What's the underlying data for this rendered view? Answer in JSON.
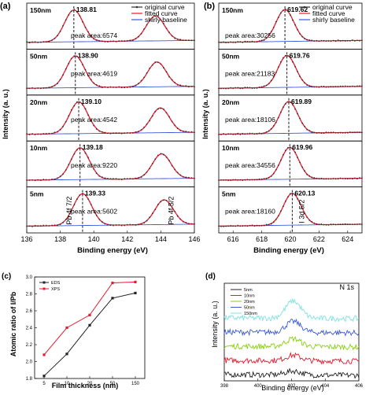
{
  "chart_data": [
    {
      "id": "a",
      "type": "line",
      "panel_label": "(a)",
      "xlabel": "Binding energy (eV)",
      "ylabel": "Intensity (a. u.)",
      "xlim": [
        136,
        146
      ],
      "xticks": [
        "136",
        "138",
        "140",
        "142",
        "144",
        "146"
      ],
      "legend": [
        "original curve",
        "fitted curve",
        "shirly baseline"
      ],
      "legend_colors": [
        "#333333",
        "#e8192c",
        "#3b5bdb"
      ],
      "peak1_width": 0.55,
      "peak2_center_offset": 4.87,
      "peak2_ratio": 0.78,
      "rows": [
        {
          "sample": "150nm",
          "peak": "138.81",
          "area": "peak area:6574",
          "peak_value": 138.81
        },
        {
          "sample": "50nm",
          "peak": "138.90",
          "area": "peak area:4619",
          "peak_value": 138.9
        },
        {
          "sample": "20nm",
          "peak": "139.10",
          "area": "peak area:4542",
          "peak_value": 139.1
        },
        {
          "sample": "10nm",
          "peak": "139.18",
          "area": "peak area:9220",
          "peak_value": 139.18
        },
        {
          "sample": "5nm",
          "peak": "139.33",
          "area": "peak area:5602",
          "peak_value": 139.33
        }
      ],
      "annotations": [
        "Pb 4f 7/2",
        "Pb 4f 5/2"
      ]
    },
    {
      "id": "b",
      "type": "line",
      "panel_label": "(b)",
      "xlabel": "Binding energy (eV)",
      "ylabel": "Intensity (a. u.)",
      "xlim": [
        615,
        625
      ],
      "xticks": [
        "616",
        "618",
        "620",
        "622",
        "624"
      ],
      "legend": [
        "original curve",
        "fitted curve",
        "shirly baseline"
      ],
      "legend_colors": [
        "#333333",
        "#e8192c",
        "#3b5bdb"
      ],
      "peak1_width": 0.62,
      "rows": [
        {
          "sample": "150nm",
          "peak": "619.62",
          "area": "peak area:30256",
          "peak_value": 619.62
        },
        {
          "sample": "50nm",
          "peak": "619.76",
          "area": "peak area:21183",
          "peak_value": 619.76
        },
        {
          "sample": "20nm",
          "peak": "619.89",
          "area": "peak area:18106",
          "peak_value": 619.89
        },
        {
          "sample": "10nm",
          "peak": "619.96",
          "area": "peak area:34556",
          "peak_value": 619.96
        },
        {
          "sample": "5nm",
          "peak": "620.13",
          "area": "peak area:18160",
          "peak_value": 620.13
        }
      ],
      "annotations": [
        "I 3d 5/2"
      ]
    },
    {
      "id": "c",
      "type": "line",
      "panel_label": "(c)",
      "xlabel": "Film thickness (nm)",
      "ylabel": "Atomic ratio of I/Pb",
      "categories": [
        "5",
        "10",
        "20",
        "50",
        "150"
      ],
      "ylim": [
        1.8,
        3.0
      ],
      "yticks": [
        "1.8",
        "2.0",
        "2.2",
        "2.4",
        "2.6",
        "2.8",
        "3.0"
      ],
      "series": [
        {
          "name": "EDS",
          "color": "#222222",
          "values": [
            1.83,
            2.09,
            2.43,
            2.75,
            2.81
          ]
        },
        {
          "name": "XPS",
          "color": "#e8192c",
          "values": [
            2.08,
            2.4,
            2.55,
            2.93,
            2.94
          ]
        }
      ],
      "legend_position": "top-left"
    },
    {
      "id": "d",
      "type": "line",
      "panel_label": "(d)",
      "title": "N 1s",
      "xlabel": "Binding energy (eV)",
      "ylabel": "Intensity (a. u.)",
      "xlim": [
        398,
        406
      ],
      "xticks": [
        "398",
        "400",
        "402",
        "404",
        "406"
      ],
      "series": [
        {
          "name": "5nm",
          "color": "#222222",
          "offset": 0.0,
          "amp": 0.25
        },
        {
          "name": "10nm",
          "color": "#e8192c",
          "offset": 0.9,
          "amp": 0.35
        },
        {
          "name": "20nm",
          "color": "#8ad10f",
          "offset": 1.8,
          "amp": 0.5
        },
        {
          "name": "50nm",
          "color": "#3b5bdb",
          "offset": 2.7,
          "amp": 0.7
        },
        {
          "name": "150nm",
          "color": "#7fe3e3",
          "offset": 3.6,
          "amp": 1.1
        }
      ],
      "peak_center": 402.1,
      "legend_position": "top-left"
    }
  ]
}
